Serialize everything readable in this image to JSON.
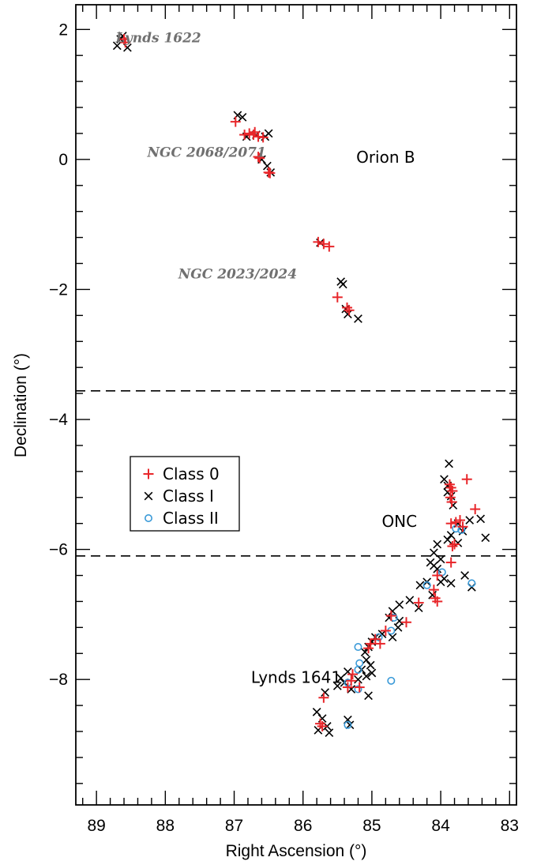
{
  "chart_data": {
    "type": "scatter",
    "xlabel": "Right Ascension (°)",
    "ylabel": "Declination (°)",
    "xlim": [
      89.3,
      82.9
    ],
    "ylim": [
      -9.93,
      2.38
    ],
    "x_reversed": true,
    "x_ticks": [
      89,
      88,
      87,
      86,
      85,
      84,
      83
    ],
    "x_tick_labels": [
      "89",
      "88",
      "87",
      "86",
      "85",
      "84",
      "83"
    ],
    "y_ticks": [
      2,
      0,
      -2,
      -4,
      -6,
      -8
    ],
    "y_tick_labels": [
      "2",
      "0",
      "−2",
      "−4",
      "−6",
      "−8"
    ],
    "grid": false,
    "legend_position": "middle-left",
    "dividers": [
      -3.56,
      -6.1
    ],
    "region_labels": [
      {
        "text": "Orion B",
        "x": 84.8,
        "y": -0.05
      },
      {
        "text": "ONC",
        "x": 84.6,
        "y": -5.65
      },
      {
        "text": "Lynds 1641",
        "x": 86.1,
        "y": -8.05
      }
    ],
    "cluster_labels": [
      {
        "text": "Lynds 1622",
        "x": 88.1,
        "y": 1.8
      },
      {
        "text": "NGC 2068/2071",
        "x": 87.4,
        "y": 0.04
      },
      {
        "text": "NGC 2023/2024",
        "x": 86.95,
        "y": -1.83
      }
    ],
    "series": [
      {
        "name": "Class 0",
        "marker": "plus",
        "color": "#e8262a",
        "points": [
          [
            88.6,
            1.85
          ],
          [
            88.58,
            1.8
          ],
          [
            86.98,
            0.58
          ],
          [
            86.85,
            0.38
          ],
          [
            86.78,
            0.4
          ],
          [
            86.72,
            0.38
          ],
          [
            86.7,
            0.42
          ],
          [
            86.65,
            0.35
          ],
          [
            86.58,
            0.34
          ],
          [
            86.65,
            0.04
          ],
          [
            86.63,
            0.02
          ],
          [
            86.5,
            -0.2
          ],
          [
            86.48,
            -0.21
          ],
          [
            85.78,
            -1.27
          ],
          [
            85.7,
            -1.3
          ],
          [
            85.62,
            -1.34
          ],
          [
            85.5,
            -2.12
          ],
          [
            85.36,
            -2.28
          ],
          [
            85.33,
            -2.32
          ],
          [
            83.87,
            -5.0
          ],
          [
            83.85,
            -5.05
          ],
          [
            83.83,
            -5.1
          ],
          [
            83.86,
            -5.2
          ],
          [
            83.84,
            -5.27
          ],
          [
            83.62,
            -4.92
          ],
          [
            83.5,
            -5.38
          ],
          [
            83.78,
            -5.58
          ],
          [
            83.72,
            -5.55
          ],
          [
            83.85,
            -5.6
          ],
          [
            83.68,
            -5.65
          ],
          [
            83.8,
            -5.92
          ],
          [
            83.83,
            -5.95
          ],
          [
            83.85,
            -6.2
          ],
          [
            84.05,
            -6.4
          ],
          [
            84.1,
            -6.62
          ],
          [
            84.08,
            -6.75
          ],
          [
            84.05,
            -6.8
          ],
          [
            84.32,
            -6.82
          ],
          [
            84.5,
            -7.12
          ],
          [
            84.72,
            -7.02
          ],
          [
            84.8,
            -7.25
          ],
          [
            84.88,
            -7.45
          ],
          [
            84.95,
            -7.38
          ],
          [
            85.02,
            -7.45
          ],
          [
            85.05,
            -7.52
          ],
          [
            85.18,
            -8.12
          ],
          [
            85.28,
            -7.92
          ],
          [
            85.3,
            -8.02
          ],
          [
            85.35,
            -8.12
          ],
          [
            85.72,
            -8.72
          ],
          [
            85.75,
            -8.68
          ],
          [
            85.7,
            -8.28
          ]
        ]
      },
      {
        "name": "Class I",
        "marker": "cross",
        "color": "#000000",
        "points": [
          [
            88.7,
            1.75
          ],
          [
            88.65,
            1.85
          ],
          [
            88.62,
            1.9
          ],
          [
            88.55,
            1.72
          ],
          [
            86.95,
            0.68
          ],
          [
            86.88,
            0.65
          ],
          [
            86.82,
            0.35
          ],
          [
            86.68,
            0.38
          ],
          [
            86.55,
            0.35
          ],
          [
            86.5,
            0.4
          ],
          [
            86.6,
            0.0
          ],
          [
            86.52,
            -0.1
          ],
          [
            86.47,
            -0.2
          ],
          [
            85.75,
            -1.28
          ],
          [
            85.45,
            -1.88
          ],
          [
            85.42,
            -1.92
          ],
          [
            85.38,
            -2.3
          ],
          [
            85.35,
            -2.38
          ],
          [
            85.2,
            -2.45
          ],
          [
            83.88,
            -4.68
          ],
          [
            83.95,
            -4.92
          ],
          [
            83.9,
            -5.02
          ],
          [
            83.85,
            -5.18
          ],
          [
            83.9,
            -5.12
          ],
          [
            83.82,
            -5.32
          ],
          [
            83.42,
            -5.53
          ],
          [
            83.58,
            -5.55
          ],
          [
            83.75,
            -5.6
          ],
          [
            83.68,
            -5.72
          ],
          [
            83.85,
            -5.78
          ],
          [
            83.75,
            -5.9
          ],
          [
            83.35,
            -5.82
          ],
          [
            83.9,
            -5.85
          ],
          [
            84.05,
            -5.92
          ],
          [
            84.1,
            -6.05
          ],
          [
            84.15,
            -6.2
          ],
          [
            84.1,
            -6.25
          ],
          [
            84.0,
            -6.15
          ],
          [
            84.05,
            -6.3
          ],
          [
            84.0,
            -6.5
          ],
          [
            83.95,
            -6.45
          ],
          [
            83.85,
            -6.52
          ],
          [
            83.65,
            -6.4
          ],
          [
            83.55,
            -6.58
          ],
          [
            84.2,
            -6.5
          ],
          [
            84.3,
            -6.55
          ],
          [
            84.45,
            -6.78
          ],
          [
            84.32,
            -6.9
          ],
          [
            84.12,
            -6.7
          ],
          [
            84.6,
            -6.85
          ],
          [
            84.7,
            -6.95
          ],
          [
            84.6,
            -7.1
          ],
          [
            84.75,
            -7.05
          ],
          [
            84.62,
            -7.2
          ],
          [
            84.7,
            -7.35
          ],
          [
            84.85,
            -7.3
          ],
          [
            84.95,
            -7.35
          ],
          [
            85.0,
            -7.42
          ],
          [
            85.05,
            -7.5
          ],
          [
            85.1,
            -7.58
          ],
          [
            85.08,
            -7.7
          ],
          [
            85.02,
            -7.78
          ],
          [
            85.15,
            -7.85
          ],
          [
            85.0,
            -7.9
          ],
          [
            85.08,
            -7.95
          ],
          [
            85.2,
            -8.0
          ],
          [
            85.35,
            -7.88
          ],
          [
            85.4,
            -8.05
          ],
          [
            85.45,
            -7.98
          ],
          [
            85.3,
            -8.15
          ],
          [
            85.05,
            -8.25
          ],
          [
            85.5,
            -8.1
          ],
          [
            85.68,
            -8.2
          ],
          [
            85.8,
            -8.5
          ],
          [
            85.72,
            -8.6
          ],
          [
            85.65,
            -8.72
          ],
          [
            85.78,
            -8.78
          ],
          [
            85.62,
            -8.82
          ],
          [
            85.35,
            -8.62
          ],
          [
            85.32,
            -8.7
          ]
        ]
      },
      {
        "name": "Class II",
        "marker": "circle",
        "color": "#3a9ad8",
        "points": [
          [
            83.78,
            -5.68
          ],
          [
            83.7,
            -5.7
          ],
          [
            83.98,
            -6.35
          ],
          [
            83.55,
            -6.52
          ],
          [
            84.2,
            -6.55
          ],
          [
            84.68,
            -7.05
          ],
          [
            84.72,
            -7.25
          ],
          [
            84.9,
            -7.35
          ],
          [
            85.2,
            -7.5
          ],
          [
            85.18,
            -7.75
          ],
          [
            85.2,
            -7.85
          ],
          [
            84.72,
            -8.02
          ],
          [
            85.35,
            -8.05
          ],
          [
            85.2,
            -8.15
          ],
          [
            85.35,
            -8.7
          ]
        ]
      }
    ]
  }
}
